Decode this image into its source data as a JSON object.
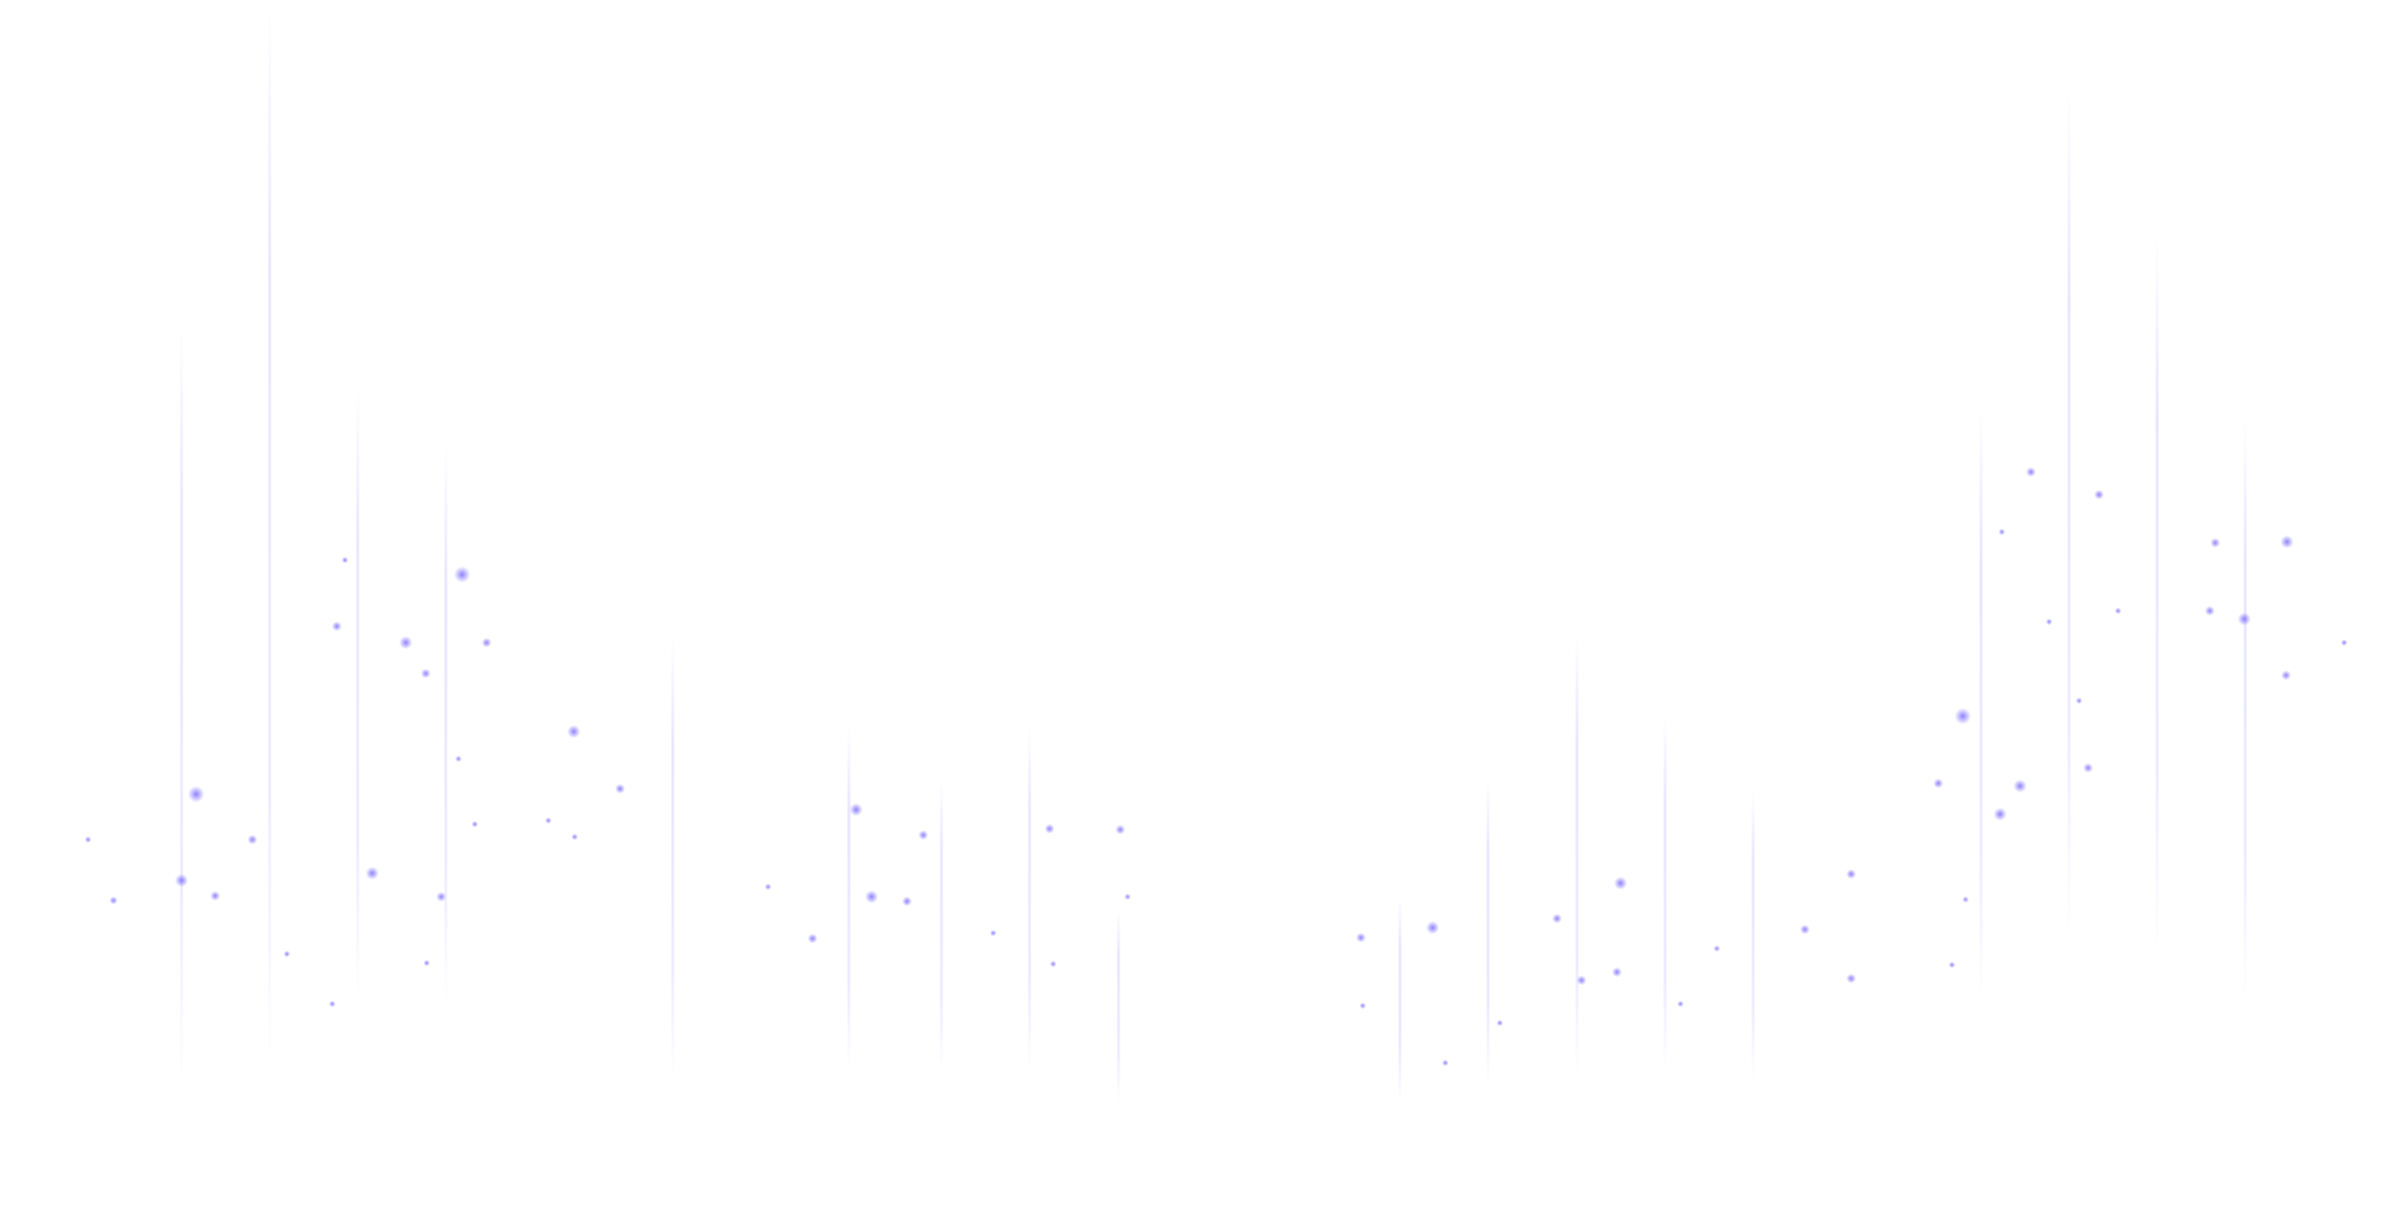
{
  "background": {
    "description": "decorative-particle-backdrop",
    "colors": {
      "page": "#ffffff",
      "beam": "#7c6cff",
      "particle": "#7a6bff"
    }
  }
}
